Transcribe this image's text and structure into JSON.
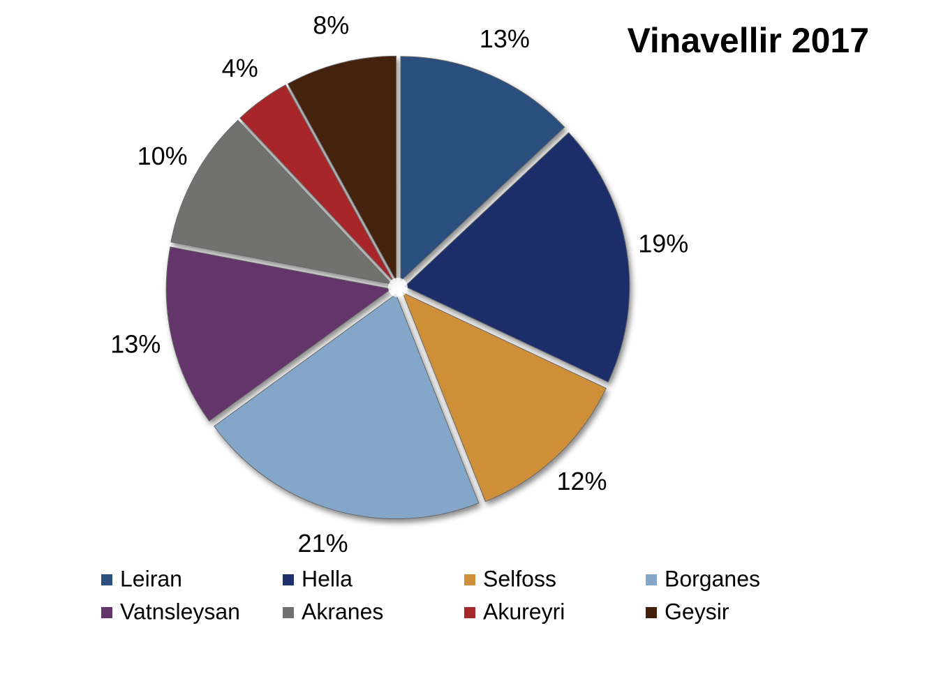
{
  "chart_data": {
    "type": "pie",
    "title": "Vinavellir 2017",
    "categories": [
      "Leiran",
      "Hella",
      "Selfoss",
      "Borganes",
      "Vatnsleysan",
      "Akranes",
      "Akureyri",
      "Geysir"
    ],
    "values": [
      13,
      19,
      12,
      21,
      13,
      10,
      4,
      8
    ],
    "value_labels": [
      "13%",
      "19%",
      "12%",
      "21%",
      "13%",
      "10%",
      "4%",
      "8%"
    ],
    "colors": [
      "#2b4f7e",
      "#1f2f6b",
      "#cf8f38",
      "#84a6c8",
      "#64356a",
      "#717270",
      "#a8282a",
      "#44200a"
    ],
    "legend": "bottom"
  }
}
